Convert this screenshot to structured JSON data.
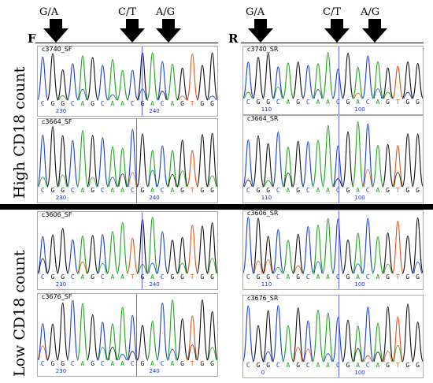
{
  "headers": {
    "left": [
      "G/A",
      "C/T",
      "A/G"
    ],
    "right": [
      "G/A",
      "C/T",
      "A/G"
    ],
    "forward_letter": "F",
    "reverse_letter": "R"
  },
  "groups": {
    "high": "High CD18 count",
    "low": "Low CD18 count"
  },
  "traces": [
    {
      "title": "c3740_SF",
      "bases": "CGGCAGCAACGACAGTGG",
      "scale": [
        "230",
        "240"
      ]
    },
    {
      "title": "c3664_SF",
      "bases": "CGGCAGCAACGACAGTGG",
      "scale": [
        "230",
        "240"
      ]
    },
    {
      "title": "c3740_SR",
      "bases": "CGGCAGCAACGACAGTGG",
      "scale": [
        "110",
        "100"
      ]
    },
    {
      "title": "c3664_SR",
      "bases": "CGGCAGCAACGACAGTGG",
      "scale": [
        "110",
        "100"
      ]
    },
    {
      "title": "c3606_SF",
      "bases": "CGGCAGCAATGACGGTGG",
      "scale": [
        "230",
        "240"
      ]
    },
    {
      "title": "c3676_SF",
      "bases": "CGGCAGCAACGACAGTGG",
      "scale": [
        "230",
        "240"
      ]
    },
    {
      "title": "c3606_SR",
      "bases": "CGGCAGCAACGACAGTGG",
      "scale": [
        "110",
        "100"
      ]
    },
    {
      "title": "c3676_SR",
      "bases": "CGGCAGCAACGACAGTGG",
      "scale": [
        "0",
        "100"
      ]
    }
  ],
  "colors": {
    "A": "#1aa51a",
    "C": "#1a3fd6",
    "G": "#111111",
    "T": "#e0531a",
    "marker": "#4444ff"
  }
}
